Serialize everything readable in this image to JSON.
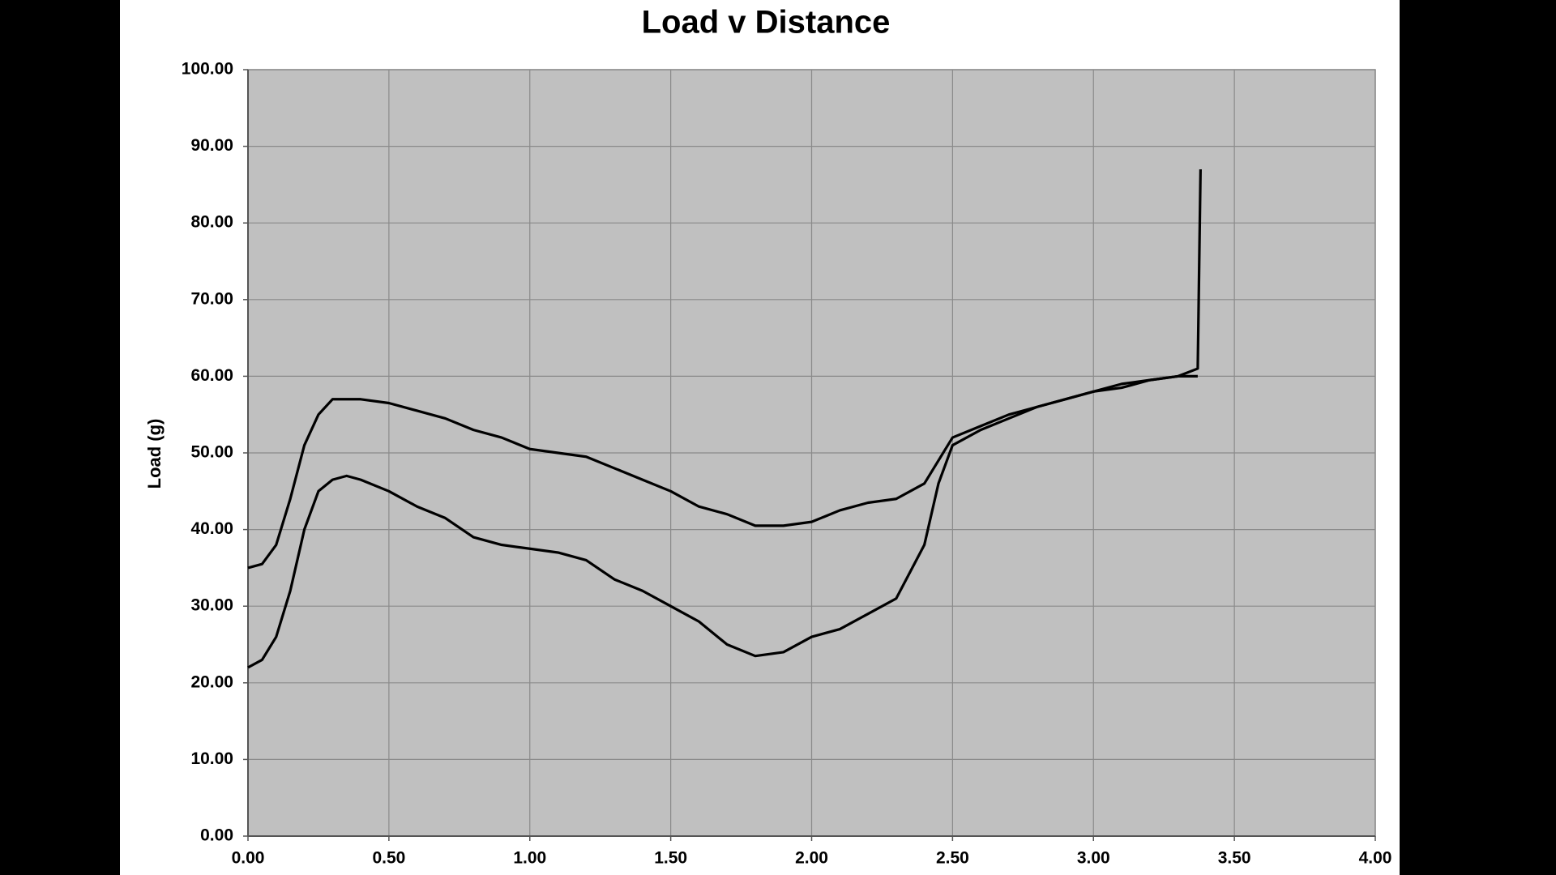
{
  "chart_data": {
    "type": "line",
    "title": "Load v Distance",
    "y_label": "Load (g)",
    "x": [
      0,
      0.05,
      0.1,
      0.15,
      0.2,
      0.25,
      0.3,
      0.35,
      0.4,
      0.5,
      0.6,
      0.7,
      0.8,
      0.9,
      1.0,
      1.1,
      1.2,
      1.3,
      1.4,
      1.5,
      1.6,
      1.7,
      1.8,
      1.9,
      2.0,
      2.1,
      2.2,
      2.3,
      2.4,
      2.45,
      2.5,
      2.6,
      2.7,
      2.8,
      2.9,
      3.0,
      3.1,
      3.2,
      3.3,
      3.37,
      3.38
    ],
    "series": [
      {
        "color": "#000000",
        "values": [
          35,
          35.5,
          38,
          44,
          51,
          55,
          57,
          57,
          57,
          56.5,
          55.5,
          54.5,
          53,
          52,
          50.5,
          50,
          49.5,
          48,
          46.5,
          45,
          43,
          42,
          40.5,
          40.5,
          41,
          42.5,
          43.5,
          44,
          46,
          49,
          52,
          53.5,
          55,
          56,
          57,
          58,
          58.5,
          59.5,
          60,
          60,
          null
        ]
      },
      {
        "color": "#000000",
        "values": [
          22,
          23,
          26,
          32,
          40,
          45,
          46.5,
          47,
          46.5,
          45,
          43,
          41.5,
          39,
          38,
          37.5,
          37,
          36,
          33.5,
          32,
          30,
          28,
          25,
          23.5,
          24,
          26,
          27,
          29,
          31,
          38,
          46,
          51,
          53,
          54.5,
          56,
          57,
          58,
          59,
          59.5,
          60,
          61,
          87
        ]
      }
    ],
    "xlim": [
      0,
      4
    ],
    "xticks": [
      {
        "value": 0,
        "label": "0.00"
      },
      {
        "value": 0.5,
        "label": "0.50"
      },
      {
        "value": 1,
        "label": "1.00"
      },
      {
        "value": 1.5,
        "label": "1.50"
      },
      {
        "value": 2,
        "label": "2.00"
      },
      {
        "value": 2.5,
        "label": "2.50"
      },
      {
        "value": 3,
        "label": "3.00"
      },
      {
        "value": 3.5,
        "label": "3.50"
      },
      {
        "value": 4,
        "label": "4.00"
      }
    ],
    "ylim": [
      0,
      100
    ],
    "yticks": [
      {
        "value": 0,
        "label": "0.00"
      },
      {
        "value": 10,
        "label": "10.00"
      },
      {
        "value": 20,
        "label": "20.00"
      },
      {
        "value": 30,
        "label": "30.00"
      },
      {
        "value": 40,
        "label": "40.00"
      },
      {
        "value": 50,
        "label": "50.00"
      },
      {
        "value": 60,
        "label": "60.00"
      },
      {
        "value": 70,
        "label": "70.00"
      },
      {
        "value": 80,
        "label": "80.00"
      },
      {
        "value": 90,
        "label": "90.00"
      },
      {
        "value": 100,
        "label": "100.00"
      }
    ],
    "grid": true,
    "plot_background": "#c0c0c0"
  }
}
